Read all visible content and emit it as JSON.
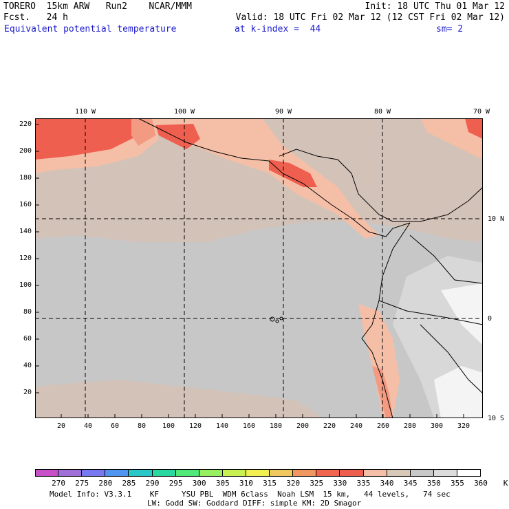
{
  "header": {
    "line1_left": "TORERO  15km ARW   Run2    NCAR/MMM",
    "line1_right": "Init: 18 UTC Thu 01 Mar 12",
    "line2_left": "Fcst.   24 h",
    "line2_right": "Valid: 18 UTC Fri 02 Mar 12 (12 CST Fri 02 Mar 12)",
    "line3_field": "Equivalent potential temperature",
    "line3_level": "at k-index =  44",
    "line3_sm": "sm= 2"
  },
  "map": {
    "top_lon_labels": [
      "110 W",
      "100 W",
      "90 W",
      "80 W",
      "70 W"
    ],
    "right_lat_labels": [
      "10 N",
      "0",
      "10 S"
    ],
    "x_grid_labels": [
      "20",
      "40",
      "60",
      "80",
      "100",
      "120",
      "140",
      "160",
      "180",
      "200",
      "220",
      "240",
      "260",
      "280",
      "300",
      "320"
    ],
    "y_grid_labels": [
      "220",
      "200",
      "180",
      "160",
      "140",
      "120",
      "100",
      "80",
      "60",
      "40",
      "20"
    ],
    "colors": {
      "ocean_main": "#c7c7c7",
      "ocean_tan": "#d3c2b8",
      "light_gray": "#d8d8d8",
      "white_patch": "#f4f4f4",
      "warm_340": "#f5bfa7",
      "warm_335": "#f29a82",
      "warm_330": "#ef5f50",
      "coast": "#000000",
      "dashed_grid": "#000000"
    }
  },
  "colorbar": {
    "labels": [
      "270",
      "275",
      "280",
      "285",
      "290",
      "295",
      "300",
      "305",
      "310",
      "315",
      "320",
      "325",
      "330",
      "335",
      "340",
      "345",
      "350",
      "355",
      "360",
      "K"
    ],
    "colors": [
      "#c850c8",
      "#a070d8",
      "#7878f0",
      "#5096f0",
      "#28c8c8",
      "#28d8a0",
      "#50e878",
      "#96f060",
      "#c8f050",
      "#f0f050",
      "#f0c860",
      "#f09660",
      "#f06450",
      "#ef5f50",
      "#f5bfa7",
      "#d8c8b8",
      "#c8c8c8",
      "#dcdcdc",
      "#ffffff"
    ]
  },
  "footer": {
    "line1": "Model Info: V3.3.1    KF     YSU PBL  WDM 6class  Noah LSM  15 km,   44 levels,   74 sec",
    "line2": "LW: Godd SW: Goddard DIFF: simple KM: 2D Smagor"
  }
}
